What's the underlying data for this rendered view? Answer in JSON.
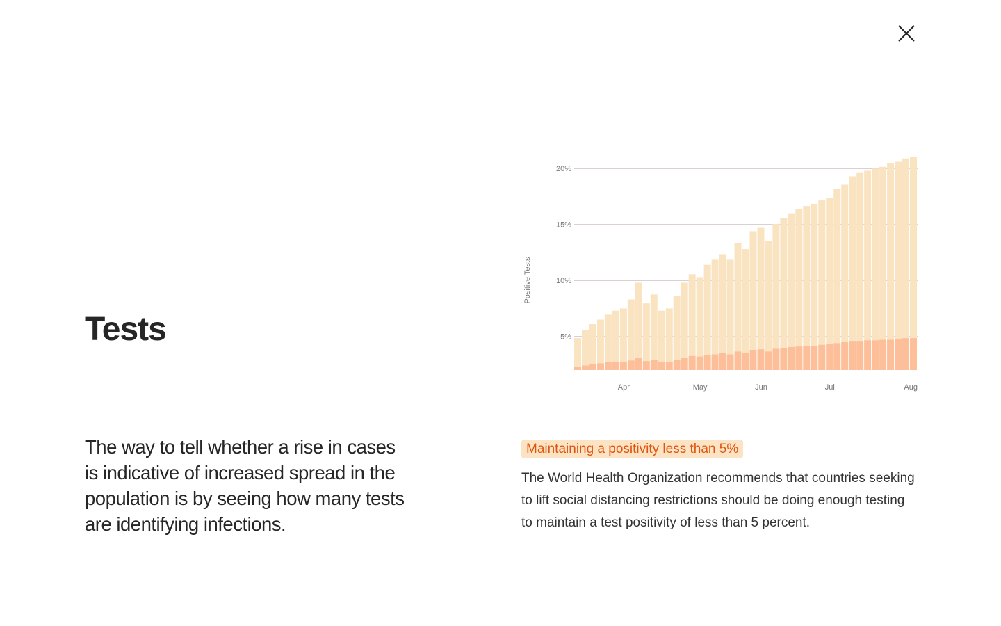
{
  "close_icon": "close-x-icon",
  "title": "Tests",
  "lead": "The way to tell whether a rise in cases is indicative of increased spread in the population is by seeing how many tests are identifying infections.",
  "highlight": "Maintaining a positivity less than 5%",
  "body": "The World Health Organization recommends that countries seeking to lift social distancing restrictions should be doing enough testing to maintain a test positivity of less than 5 percent.",
  "colors": {
    "total_bar": "#f9e3c1",
    "positive_bar": "#fdbf9a",
    "grid": "#cdbfc3",
    "highlight_bg": "#fbe3c3",
    "highlight_text": "#e1540f"
  },
  "chart_data": {
    "type": "bar",
    "stacked_overlay": true,
    "ylabel": "Positive Tests",
    "ylim": [
      2,
      21.2
    ],
    "y_ticks": [
      "5%",
      "10%",
      "15%",
      "20%"
    ],
    "y_tick_values": [
      5,
      10,
      15,
      20
    ],
    "grid": true,
    "x_ticks": [
      {
        "label": "Apr",
        "at_bar": 6
      },
      {
        "label": "May",
        "at_bar": 16
      },
      {
        "label": "Jun",
        "at_bar": 24
      },
      {
        "label": "Jul",
        "at_bar": 33
      },
      {
        "label": "Aug",
        "at_bar": 44
      }
    ],
    "series": [
      {
        "values": [
          4.85,
          5.6,
          6.1,
          6.5,
          6.95,
          7.3,
          7.5,
          8.3,
          9.8,
          7.95,
          8.75,
          7.3,
          7.5,
          8.6,
          9.8,
          10.55,
          10.3,
          11.4,
          11.85,
          12.35,
          11.85,
          13.35,
          12.8,
          14.4,
          14.7,
          13.55,
          15.05,
          15.6,
          16.0,
          16.35,
          16.65,
          16.85,
          17.15,
          17.4,
          18.15,
          18.55,
          19.3,
          19.6,
          19.8,
          20.0,
          20.15,
          20.45,
          20.6,
          20.9,
          21.05
        ]
      },
      {
        "values": [
          2.3,
          2.4,
          2.55,
          2.6,
          2.7,
          2.75,
          2.75,
          2.85,
          3.1,
          2.8,
          2.9,
          2.75,
          2.75,
          2.9,
          3.1,
          3.25,
          3.2,
          3.35,
          3.4,
          3.5,
          3.4,
          3.65,
          3.55,
          3.8,
          3.85,
          3.65,
          3.9,
          3.95,
          4.05,
          4.1,
          4.15,
          4.15,
          4.25,
          4.3,
          4.4,
          4.5,
          4.6,
          4.6,
          4.65,
          4.65,
          4.7,
          4.7,
          4.8,
          4.85,
          4.85
        ]
      }
    ]
  }
}
